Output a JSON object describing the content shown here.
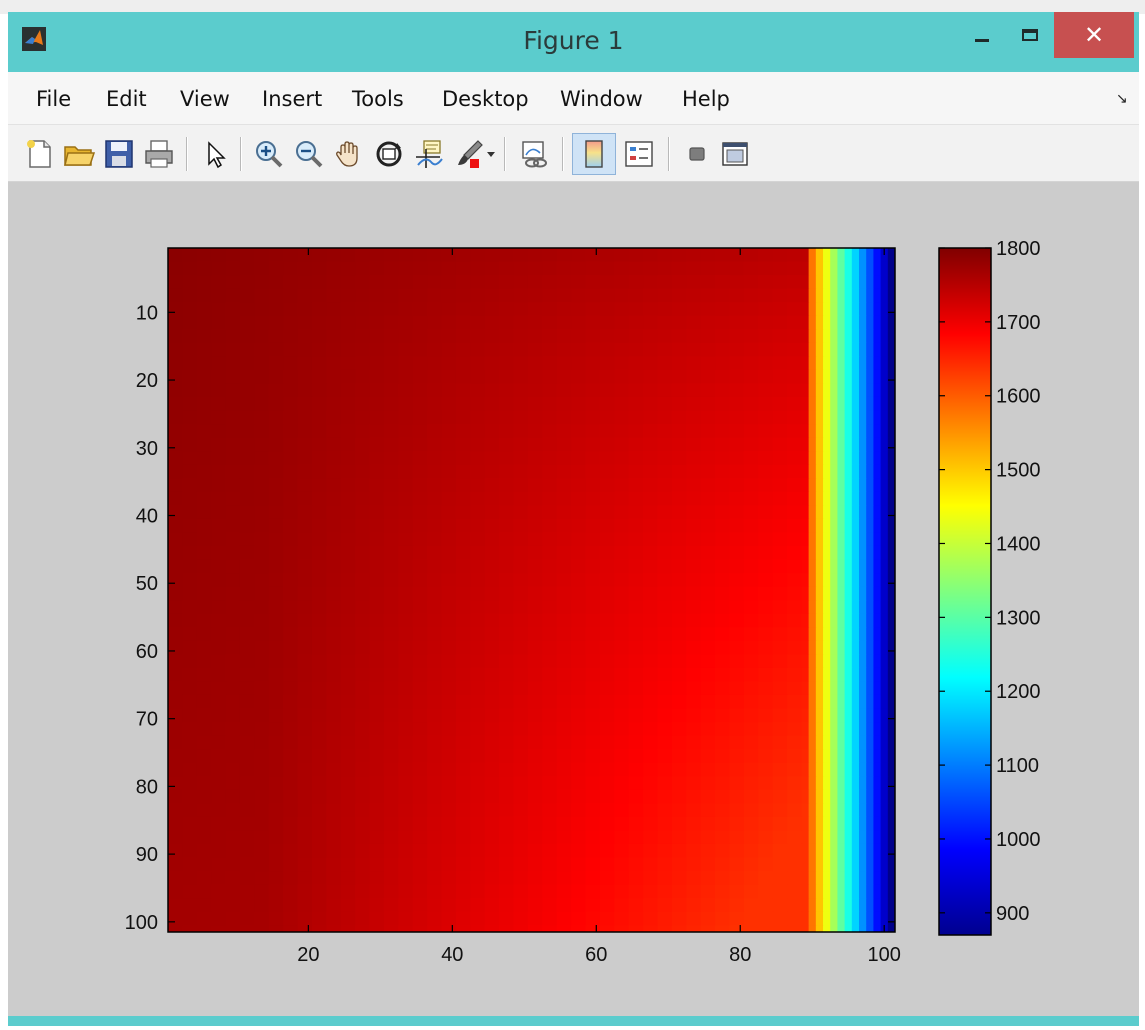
{
  "window": {
    "title": "Figure 1",
    "close_glyph": "✕"
  },
  "menu": {
    "items": [
      "File",
      "Edit",
      "View",
      "Insert",
      "Tools",
      "Desktop",
      "Window",
      "Help"
    ],
    "dock_glyph": "↘"
  },
  "toolbar": {
    "icons": [
      "new-figure-icon",
      "open-file-icon",
      "save-icon",
      "print-icon",
      "edit-plot-arrow-icon",
      "zoom-in-icon",
      "zoom-out-icon",
      "pan-hand-icon",
      "rotate-3d-icon",
      "data-cursor-icon",
      "brush-icon",
      "link-plot-icon",
      "insert-colorbar-icon",
      "insert-legend-icon",
      "hide-plot-tools-icon",
      "show-plot-tools-icon"
    ],
    "pressed": "insert-colorbar-icon"
  },
  "chart_data": {
    "type": "heatmap",
    "x_range": [
      1,
      101
    ],
    "y_range": [
      1,
      101
    ],
    "y_reversed": true,
    "x_ticks": [
      "20",
      "40",
      "60",
      "80",
      "100"
    ],
    "y_ticks": [
      "10",
      "20",
      "30",
      "40",
      "50",
      "60",
      "70",
      "80",
      "90",
      "100"
    ],
    "colormap": "jet",
    "clim": [
      870,
      1800
    ],
    "colorbar_ticks": [
      "1800",
      "1700",
      "1600",
      "1500",
      "1400",
      "1300",
      "1200",
      "1100",
      "1000",
      "900"
    ],
    "colorbar_position": "right",
    "field_description_values": {
      "top_left_max": 1790,
      "body_min_near_x89_y100": 1640,
      "transition_start_x": 89,
      "right_edge_value": 880
    }
  }
}
